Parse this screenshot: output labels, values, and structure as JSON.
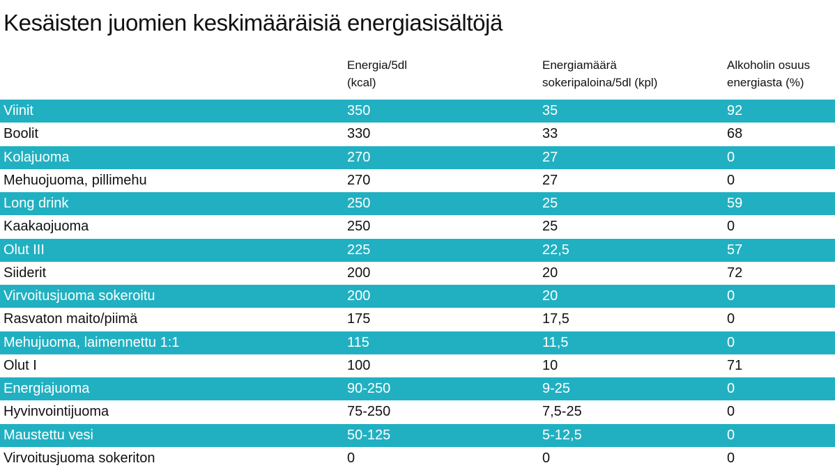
{
  "title": "Kesäisten juomien keskimääräisiä energiasisältöjä",
  "colors": {
    "band": "#21b0c1",
    "band_text": "#ffffff",
    "text": "#111111"
  },
  "chart_data": {
    "type": "table",
    "title": "Kesäisten juomien keskimääräisiä energiasisältöjä",
    "columns": [
      "",
      "Energia/5dl\n(kcal)",
      "Energiamäärä\nsokeripaloina/5dl (kpl)",
      "Alkoholin osuus\nenergiasta (%)"
    ],
    "rows": [
      {
        "name": "Viinit",
        "energy": "350",
        "sugar_cubes": "35",
        "alcohol_share": "92"
      },
      {
        "name": "Boolit",
        "energy": "330",
        "sugar_cubes": "33",
        "alcohol_share": "68"
      },
      {
        "name": "Kolajuoma",
        "energy": "270",
        "sugar_cubes": "27",
        "alcohol_share": "0"
      },
      {
        "name": "Mehuojuoma, pillimehu",
        "energy": "270",
        "sugar_cubes": "27",
        "alcohol_share": "0"
      },
      {
        "name": "Long drink",
        "energy": "250",
        "sugar_cubes": "25",
        "alcohol_share": "59"
      },
      {
        "name": "Kaakaojuoma",
        "energy": "250",
        "sugar_cubes": "25",
        "alcohol_share": "0"
      },
      {
        "name": "Olut III",
        "energy": "225",
        "sugar_cubes": "22,5",
        "alcohol_share": "57"
      },
      {
        "name": "Siiderit",
        "energy": "200",
        "sugar_cubes": "20",
        "alcohol_share": "72"
      },
      {
        "name": "Virvoitusjuoma sokeroitu",
        "energy": "200",
        "sugar_cubes": "20",
        "alcohol_share": "0"
      },
      {
        "name": "Rasvaton maito/piimä",
        "energy": "175",
        "sugar_cubes": "17,5",
        "alcohol_share": "0"
      },
      {
        "name": "Mehujuoma, laimennettu 1:1",
        "energy": "115",
        "sugar_cubes": "11,5",
        "alcohol_share": "0"
      },
      {
        "name": "Olut I",
        "energy": "100",
        "sugar_cubes": "10",
        "alcohol_share": "71"
      },
      {
        "name": "Energiajuoma",
        "energy": "90-250",
        "sugar_cubes": "9-25",
        "alcohol_share": "0"
      },
      {
        "name": "Hyvinvointijuoma",
        "energy": "75-250",
        "sugar_cubes": "7,5-25",
        "alcohol_share": "0"
      },
      {
        "name": "Maustettu vesi",
        "energy": "50-125",
        "sugar_cubes": "5-12,5",
        "alcohol_share": "0"
      },
      {
        "name": "Virvoitusjuoma sokeriton",
        "energy": "0",
        "sugar_cubes": "0",
        "alcohol_share": "0"
      }
    ]
  }
}
